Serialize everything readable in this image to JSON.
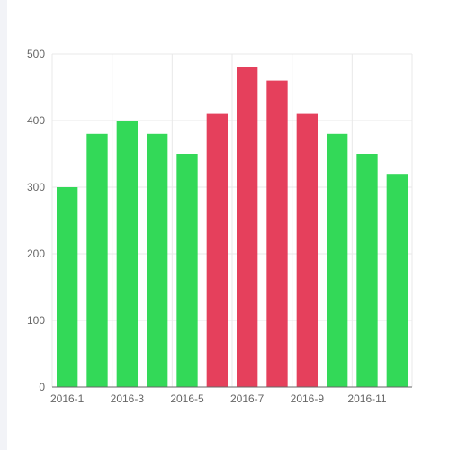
{
  "chart_data": {
    "type": "bar",
    "categories": [
      "2016-1",
      "2016-2",
      "2016-3",
      "2016-4",
      "2016-5",
      "2016-6",
      "2016-7",
      "2016-8",
      "2016-9",
      "2016-10",
      "2016-11",
      "2016-12"
    ],
    "values": [
      300,
      380,
      400,
      380,
      350,
      410,
      480,
      460,
      410,
      380,
      350,
      320
    ],
    "shown_x_tick_labels": [
      "2016-1",
      "2016-3",
      "2016-5",
      "2016-7",
      "2016-9",
      "2016-11"
    ],
    "y_ticks": [
      "0",
      "100",
      "200",
      "300",
      "400",
      "500"
    ],
    "ylim": [
      0,
      500
    ],
    "grid": true,
    "title": "",
    "xlabel": "",
    "ylabel": "",
    "legend": "none",
    "colors": {
      "normal": "#33d958",
      "highlight": "#e5405c",
      "grid": "#e8e8e8",
      "axis": "#666666",
      "tick_text": "#666666"
    },
    "highlighted_categories": [
      "2016-6",
      "2016-7",
      "2016-8",
      "2016-9"
    ]
  }
}
